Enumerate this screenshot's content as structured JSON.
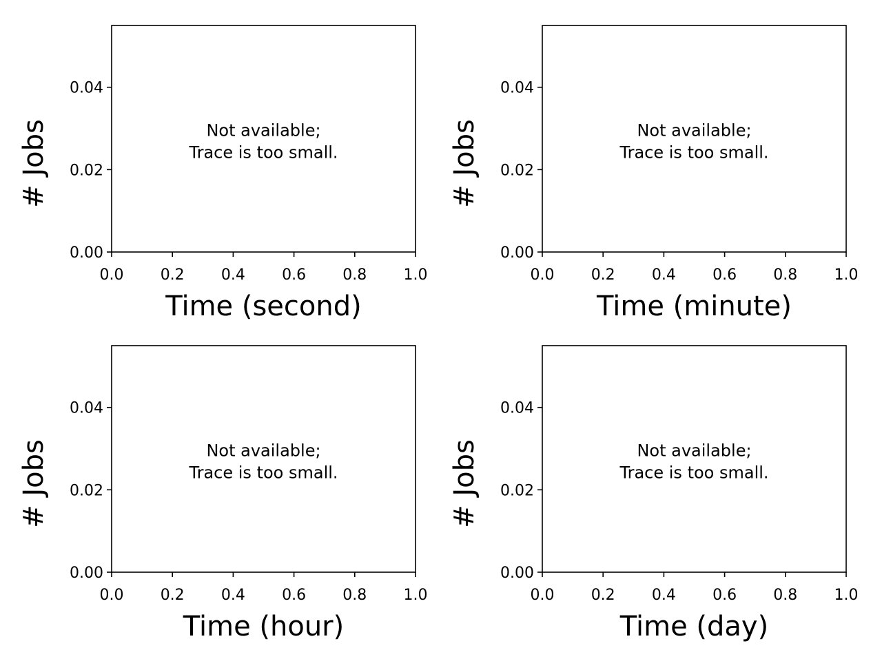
{
  "chart_data": [
    {
      "type": "bar",
      "xlabel": "Time (second)",
      "ylabel": "# Jobs",
      "xlim": [
        0.0,
        1.0
      ],
      "ylim": [
        0.0,
        0.055
      ],
      "xticks": [
        "0.0",
        "0.2",
        "0.4",
        "0.6",
        "0.8",
        "1.0"
      ],
      "yticks": [
        "0.00",
        "0.02",
        "0.04"
      ],
      "note": [
        "Not available;",
        "Trace is too small."
      ],
      "values": []
    },
    {
      "type": "bar",
      "xlabel": "Time (minute)",
      "ylabel": "# Jobs",
      "xlim": [
        0.0,
        1.0
      ],
      "ylim": [
        0.0,
        0.055
      ],
      "xticks": [
        "0.0",
        "0.2",
        "0.4",
        "0.6",
        "0.8",
        "1.0"
      ],
      "yticks": [
        "0.00",
        "0.02",
        "0.04"
      ],
      "note": [
        "Not available;",
        "Trace is too small."
      ],
      "values": []
    },
    {
      "type": "bar",
      "xlabel": "Time (hour)",
      "ylabel": "# Jobs",
      "xlim": [
        0.0,
        1.0
      ],
      "ylim": [
        0.0,
        0.055
      ],
      "xticks": [
        "0.0",
        "0.2",
        "0.4",
        "0.6",
        "0.8",
        "1.0"
      ],
      "yticks": [
        "0.00",
        "0.02",
        "0.04"
      ],
      "note": [
        "Not available;",
        "Trace is too small."
      ],
      "values": []
    },
    {
      "type": "bar",
      "xlabel": "Time (day)",
      "ylabel": "# Jobs",
      "xlim": [
        0.0,
        1.0
      ],
      "ylim": [
        0.0,
        0.055
      ],
      "xticks": [
        "0.0",
        "0.2",
        "0.4",
        "0.6",
        "0.8",
        "1.0"
      ],
      "yticks": [
        "0.00",
        "0.02",
        "0.04"
      ],
      "note": [
        "Not available;",
        "Trace is too small."
      ],
      "values": []
    }
  ]
}
